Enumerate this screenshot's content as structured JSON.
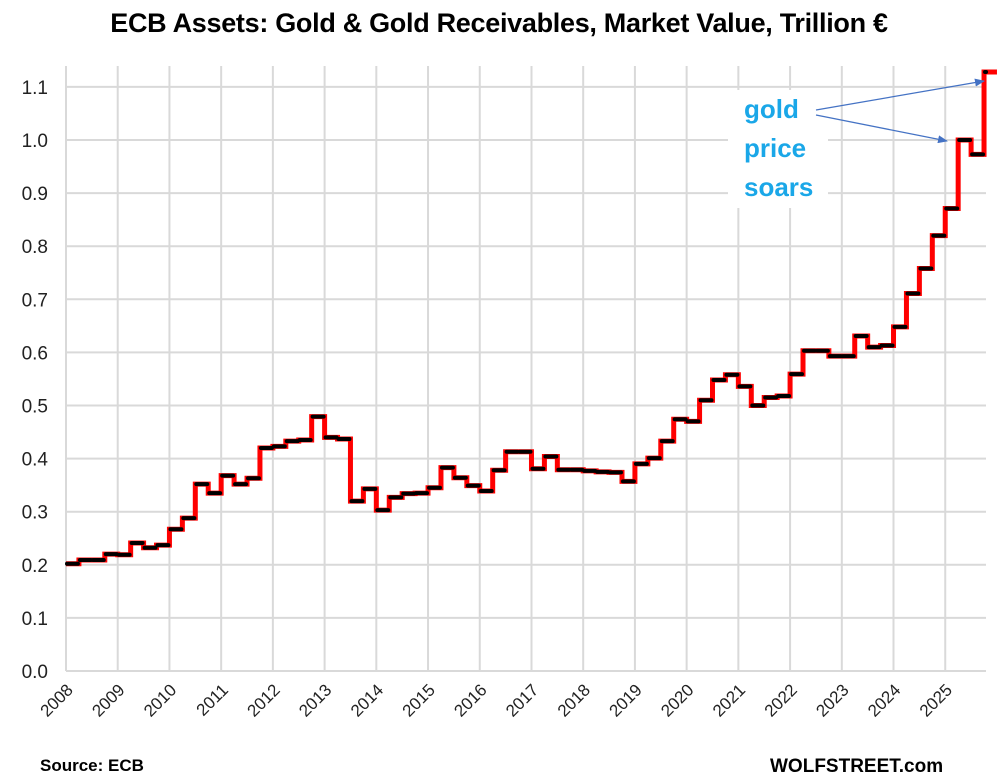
{
  "chart_data": {
    "type": "line",
    "style": "step",
    "title": "ECB Assets: Gold & Gold Receivables, Market Value, Trillion €",
    "xlabel": "",
    "ylabel": "",
    "ylim": [
      0,
      1.13
    ],
    "yticks": [
      "0.0",
      "0.1",
      "0.2",
      "0.3",
      "0.4",
      "0.5",
      "0.6",
      "0.7",
      "0.8",
      "0.9",
      "1.0",
      "1.1"
    ],
    "ytick_values": [
      0,
      0.1,
      0.2,
      0.3,
      0.4,
      0.5,
      0.6,
      0.7,
      0.8,
      0.9,
      1.0,
      1.1
    ],
    "xticks": [
      "2008",
      "2009",
      "2010",
      "2011",
      "2012",
      "2013",
      "2014",
      "2015",
      "2016",
      "2017",
      "2018",
      "2019",
      "2020",
      "2021",
      "2022",
      "2023",
      "2024",
      "2025"
    ],
    "grid": true,
    "line_color": "#ff0000",
    "marker_color": "#000000",
    "x_unit": "quarter (start 2008 Q1)",
    "series": [
      {
        "name": "Gold & Gold Receivables (Trillion €)",
        "values": [
          0.202,
          0.209,
          0.209,
          0.22,
          0.219,
          0.241,
          0.232,
          0.237,
          0.267,
          0.288,
          0.352,
          0.335,
          0.368,
          0.352,
          0.363,
          0.42,
          0.423,
          0.433,
          0.435,
          0.479,
          0.44,
          0.437,
          0.32,
          0.343,
          0.303,
          0.327,
          0.334,
          0.335,
          0.345,
          0.383,
          0.364,
          0.349,
          0.339,
          0.378,
          0.413,
          0.413,
          0.381,
          0.404,
          0.379,
          0.379,
          0.377,
          0.375,
          0.374,
          0.357,
          0.39,
          0.401,
          0.433,
          0.474,
          0.47,
          0.51,
          0.548,
          0.558,
          0.536,
          0.5,
          0.515,
          0.518,
          0.559,
          0.603,
          0.603,
          0.593,
          0.593,
          0.631,
          0.61,
          0.613,
          0.648,
          0.711,
          0.758,
          0.82,
          0.871,
          1.0,
          0.973,
          1.128
        ]
      }
    ],
    "annotations": [
      {
        "text_lines": [
          "gold",
          "price",
          "soars"
        ],
        "arrows_to": [
          "latest value",
          "2025 Q2 peak"
        ],
        "color": "#1aa7e8"
      }
    ]
  },
  "footer": {
    "source": "Source: ECB",
    "brand": "WOLFSTREET.com"
  }
}
